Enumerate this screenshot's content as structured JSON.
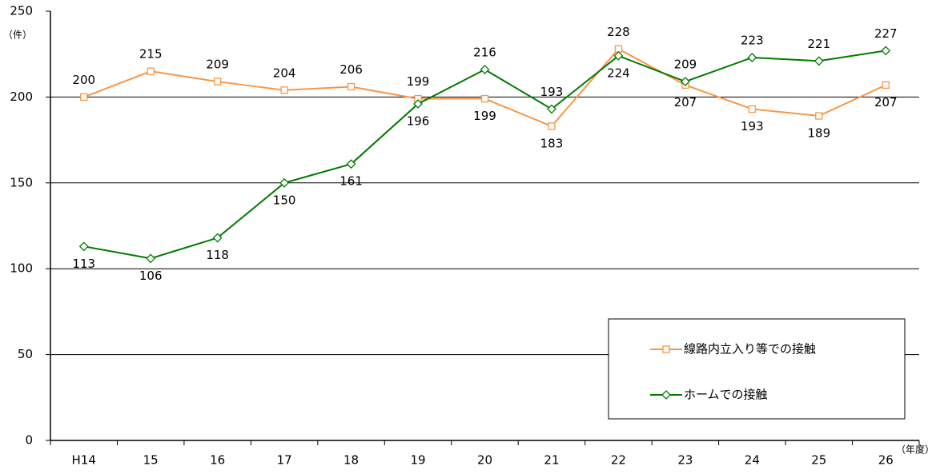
{
  "chart_data": {
    "type": "line",
    "y_label": "（件）",
    "x_label": "（年度）",
    "categories": [
      "H14",
      "15",
      "16",
      "17",
      "18",
      "19",
      "20",
      "21",
      "22",
      "23",
      "24",
      "25",
      "26"
    ],
    "series": [
      {
        "name": "線路内立入り等での接触",
        "color": "#f79646",
        "marker": "square",
        "values": [
          200,
          215,
          209,
          204,
          206,
          199,
          199,
          183,
          228,
          207,
          193,
          189,
          207
        ]
      },
      {
        "name": "ホームでの接触",
        "color": "#007a00",
        "marker": "diamond",
        "values": [
          113,
          106,
          118,
          150,
          161,
          196,
          216,
          193,
          224,
          209,
          223,
          221,
          227
        ]
      }
    ],
    "ylim": [
      0,
      250
    ],
    "yticks": [
      0,
      50,
      100,
      150,
      200,
      250
    ],
    "grid": true,
    "legend": "lower right"
  }
}
